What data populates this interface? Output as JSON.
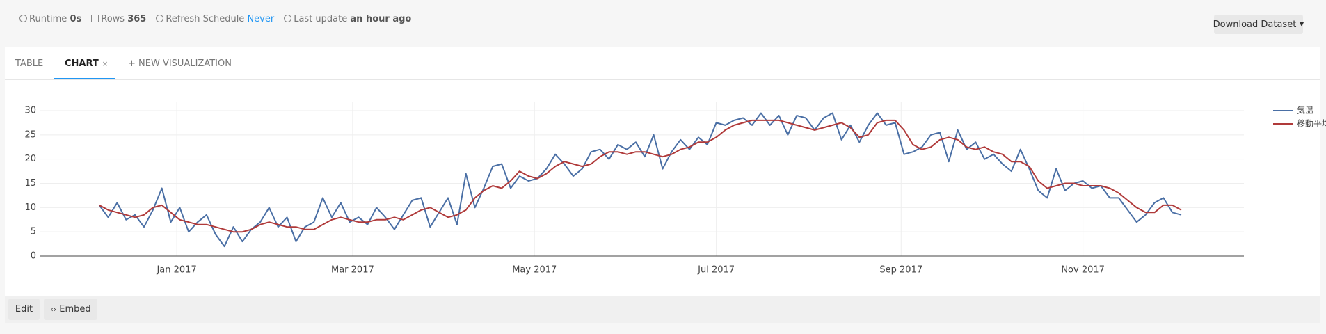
{
  "header": {
    "runtime_label": "Runtime",
    "runtime": "0s",
    "rows_label": "Rows",
    "rows": "365",
    "refresh_label": "Refresh Schedule",
    "refresh": "Never",
    "update_label": "Last update",
    "update": "an hour ago",
    "download": "Download Dataset"
  },
  "tabs": {
    "table": "TABLE",
    "chart": "CHART",
    "close": "×",
    "new": "+ NEW VISUALIZATION"
  },
  "footer": {
    "edit": "Edit",
    "embed": "Embed"
  },
  "chart_data": {
    "type": "line",
    "legend": "right",
    "grid": true,
    "xlim": [
      -46,
      358
    ],
    "ylim": [
      0,
      30
    ],
    "yticks": [
      0,
      5,
      10,
      15,
      20,
      25,
      30
    ],
    "xticks": [
      {
        "value": 0,
        "label": "Jan 2017"
      },
      {
        "value": 59,
        "label": "Mar 2017"
      },
      {
        "value": 120,
        "label": "May 2017"
      },
      {
        "value": 181,
        "label": "Jul 2017"
      },
      {
        "value": 243,
        "label": "Sep 2017"
      },
      {
        "value": 304,
        "label": "Nov 2017"
      }
    ],
    "x": [
      -26,
      -23,
      -20,
      -17,
      -14,
      -11,
      -8,
      -5,
      -2,
      1,
      4,
      7,
      10,
      13,
      16,
      19,
      22,
      25,
      28,
      31,
      34,
      37,
      40,
      43,
      46,
      49,
      52,
      55,
      58,
      61,
      64,
      67,
      70,
      73,
      76,
      79,
      82,
      85,
      88,
      91,
      94,
      97,
      100,
      103,
      106,
      109,
      112,
      115,
      118,
      121,
      124,
      127,
      130,
      133,
      136,
      139,
      142,
      145,
      148,
      151,
      154,
      157,
      160,
      163,
      166,
      169,
      172,
      175,
      178,
      181,
      184,
      187,
      190,
      193,
      196,
      199,
      202,
      205,
      208,
      211,
      214,
      217,
      220,
      223,
      226,
      229,
      232,
      235,
      238,
      241,
      244,
      247,
      250,
      253,
      256,
      259,
      262,
      265,
      268,
      271,
      274,
      277,
      280,
      283,
      286,
      289,
      292,
      295,
      298,
      301,
      304,
      307,
      310,
      313,
      316,
      319,
      322,
      325,
      328,
      331,
      334,
      337
    ],
    "series": [
      {
        "name": "気温",
        "color": "#4a6fa5",
        "values": [
          10.5,
          8,
          11,
          7.5,
          8.5,
          6,
          9.5,
          14,
          7,
          10,
          5,
          7,
          8.5,
          4.5,
          2,
          6,
          3,
          5.5,
          7,
          10,
          6,
          8,
          3,
          6,
          7,
          12,
          8,
          11,
          7,
          8,
          6.5,
          10,
          8,
          5.5,
          8.5,
          11.5,
          12,
          6,
          9,
          12,
          6.5,
          17,
          10,
          14,
          18.5,
          19,
          14,
          16.5,
          15.5,
          16,
          18,
          21,
          19,
          16.5,
          18,
          21.5,
          22,
          20,
          23,
          22,
          23.5,
          20.5,
          25,
          18,
          21.5,
          24,
          22,
          24.5,
          23,
          27.5,
          27,
          28,
          28.5,
          27,
          29.5,
          27,
          29,
          25,
          29,
          28.5,
          26,
          28.5,
          29.5,
          24,
          27,
          23.5,
          27,
          29.5,
          27,
          27.5,
          21,
          21.5,
          22.5,
          25,
          25.5,
          19.5,
          26,
          22,
          23.5,
          20,
          21,
          19,
          17.5,
          22,
          18,
          13.5,
          12,
          18,
          13.5,
          15,
          15.5,
          14,
          14.5,
          12,
          12,
          9.5,
          7,
          8.5,
          11,
          12,
          9,
          8.5
        ]
      },
      {
        "name": "移動平均",
        "color": "#b03a3a",
        "values": [
          10.5,
          9.5,
          9,
          8.5,
          8,
          8.5,
          10,
          10.5,
          9,
          7.5,
          7,
          6.5,
          6.5,
          6,
          5.5,
          5,
          5,
          5.5,
          6.5,
          7,
          6.5,
          6,
          6,
          5.5,
          5.5,
          6.5,
          7.5,
          8,
          7.5,
          7,
          7,
          7.5,
          7.5,
          8,
          7.5,
          8.5,
          9.5,
          10,
          9,
          8,
          8.5,
          9.5,
          12,
          13.5,
          14.5,
          14,
          15.5,
          17.5,
          16.5,
          16,
          17,
          18.5,
          19.5,
          19,
          18.5,
          19,
          20.5,
          21.5,
          21.5,
          21,
          21.5,
          21.5,
          21,
          20.5,
          21,
          22,
          22.5,
          23.5,
          23.5,
          24.5,
          26,
          27,
          27.5,
          28,
          28,
          28,
          28,
          27.5,
          27,
          26.5,
          26,
          26.5,
          27,
          27.5,
          26.5,
          24.5,
          25,
          27.5,
          28,
          28,
          26,
          23,
          22,
          22.5,
          24,
          24.5,
          24,
          22.5,
          22,
          22.5,
          21.5,
          21,
          19.5,
          19.5,
          18.5,
          15.5,
          14,
          14.5,
          15,
          15,
          14.5,
          14.5,
          14.5,
          14,
          13,
          11.5,
          10,
          9,
          9,
          10.5,
          10.5,
          9.5
        ]
      }
    ]
  }
}
